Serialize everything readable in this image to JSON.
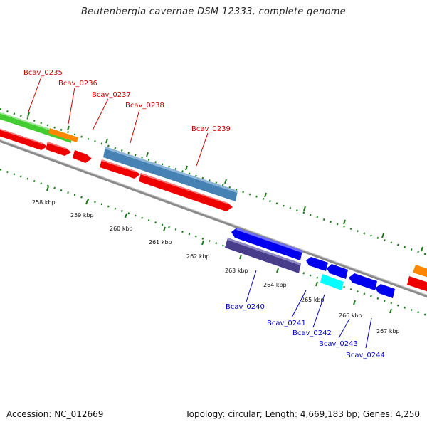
{
  "title": "Beutenbergia cavernae DSM 12333, complete genome",
  "footer": {
    "accession": "Accession: NC_012669",
    "stats": "Topology: circular; Length: 4,669,183 bp; Genes: 4,250"
  },
  "scale": [
    "258 kbp",
    "259 kbp",
    "260 kbp",
    "261 kbp",
    "262 kbp",
    "263 kbp",
    "264 kbp",
    "265 kbp",
    "266 kbp",
    "267 kbp"
  ],
  "gene_labels": {
    "forward": [
      "Bcav_0235",
      "Bcav_0236",
      "Bcav_0237",
      "Bcav_0238",
      "Bcav_0239"
    ],
    "reverse": [
      "Bcav_0240",
      "Bcav_0241",
      "Bcav_0242",
      "Bcav_0243",
      "Bcav_0244"
    ]
  },
  "colors": {
    "forward_label": "#cc0000",
    "reverse_label": "#0000cc",
    "backbone": "#888888",
    "ticks": "#1a7a1a",
    "cds_red": "#ee0000",
    "cds_blue": "#0000ee",
    "cds_green": "#44cc33",
    "cds_orange": "#ff8800",
    "cds_steelblue": "#4682b4",
    "cds_slate": "#483d8b",
    "cds_cyan": "#00ffff"
  }
}
